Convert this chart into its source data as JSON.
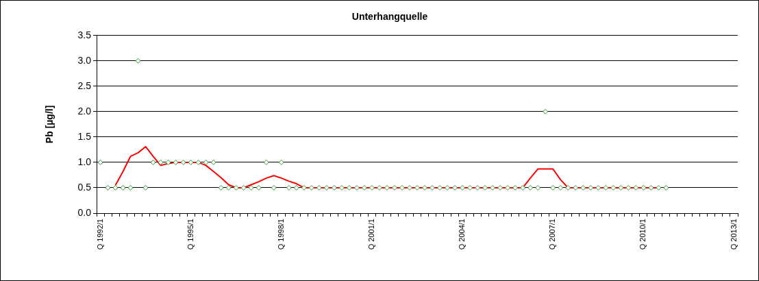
{
  "chart_data": {
    "type": "line",
    "title": "Unterhangquelle",
    "ylabel": "Pb [µg/l]",
    "categories": [
      "Q 1992/1",
      null,
      null,
      null,
      null,
      null,
      null,
      null,
      null,
      null,
      null,
      null,
      "Q 1995/1",
      null,
      null,
      null,
      null,
      null,
      null,
      null,
      null,
      null,
      null,
      null,
      "Q 1998/1",
      null,
      null,
      null,
      null,
      null,
      null,
      null,
      null,
      null,
      null,
      null,
      "Q 2001/1",
      null,
      null,
      null,
      null,
      null,
      null,
      null,
      null,
      null,
      null,
      null,
      "Q 2004/1",
      null,
      null,
      null,
      null,
      null,
      null,
      null,
      null,
      null,
      null,
      null,
      "Q 2007/1",
      null,
      null,
      null,
      null,
      null,
      null,
      null,
      null,
      null,
      null,
      null,
      "Q 2010/1",
      null,
      null,
      null,
      null,
      null,
      null,
      null,
      null,
      null,
      null,
      null,
      "Q 2013/1"
    ],
    "ylim": [
      0,
      3.5
    ],
    "yticks": [
      {
        "value": 0,
        "label": "0.0"
      },
      {
        "value": 0.5,
        "label": "0.5"
      },
      {
        "value": 1,
        "label": "1.0"
      },
      {
        "value": 1.5,
        "label": "1.5"
      },
      {
        "value": 2,
        "label": "2.0"
      },
      {
        "value": 2.5,
        "label": "2.5"
      },
      {
        "value": 3,
        "label": "3.0"
      },
      {
        "value": 3.5,
        "label": "3.5"
      }
    ],
    "grid": "y",
    "legend": false,
    "series": [
      {
        "type": "scatter",
        "marker": "diamond",
        "color": "#339933",
        "values": [
          1,
          0.5,
          0.5,
          0.5,
          0.5,
          3,
          0.5,
          1,
          1,
          1,
          1,
          1,
          1,
          1,
          1,
          1,
          0.5,
          0.5,
          0.5,
          0.5,
          0.5,
          0.5,
          1,
          0.5,
          1,
          0.5,
          0.5,
          0.5,
          0.5,
          0.5,
          0.5,
          0.5,
          0.5,
          0.5,
          0.5,
          0.5,
          0.5,
          0.5,
          0.5,
          0.5,
          0.5,
          0.5,
          0.5,
          0.5,
          0.5,
          0.5,
          0.5,
          0.5,
          0.5,
          0.5,
          0.5,
          0.5,
          0.5,
          0.5,
          0.5,
          0.5,
          0.5,
          0.5,
          0.5,
          2,
          0.5,
          0.5,
          0.5,
          0.5,
          0.5,
          0.5,
          0.5,
          0.5,
          0.5,
          0.5,
          0.5,
          0.5,
          0.5,
          0.5,
          0.5,
          0.5,
          null,
          null,
          null,
          null,
          null,
          null,
          null,
          null,
          null
        ]
      },
      {
        "type": "line",
        "marker": "none",
        "line_style": "solid",
        "color": "#ff0000",
        "values": [
          null,
          null,
          0.55,
          0.82,
          1.12,
          1.19,
          1.31,
          1.12,
          0.94,
          0.98,
          1,
          1,
          1,
          1,
          0.94,
          0.82,
          0.7,
          0.56,
          0.5,
          0.5,
          0.56,
          0.62,
          0.69,
          0.74,
          0.69,
          0.63,
          0.58,
          0.5,
          0.5,
          0.5,
          0.5,
          0.5,
          0.5,
          0.5,
          0.5,
          0.5,
          0.5,
          0.5,
          0.5,
          0.5,
          0.5,
          0.5,
          0.5,
          0.5,
          0.5,
          0.5,
          0.5,
          0.5,
          0.5,
          0.5,
          0.5,
          0.5,
          0.5,
          0.5,
          0.5,
          0.5,
          0.5,
          0.69,
          0.87,
          0.87,
          0.87,
          0.66,
          0.5,
          0.5,
          0.5,
          0.5,
          0.5,
          0.5,
          0.5,
          0.5,
          0.5,
          0.5,
          0.5,
          0.5,
          0.5,
          null,
          null,
          null,
          null,
          null,
          null,
          null,
          null,
          null,
          null
        ]
      }
    ]
  }
}
